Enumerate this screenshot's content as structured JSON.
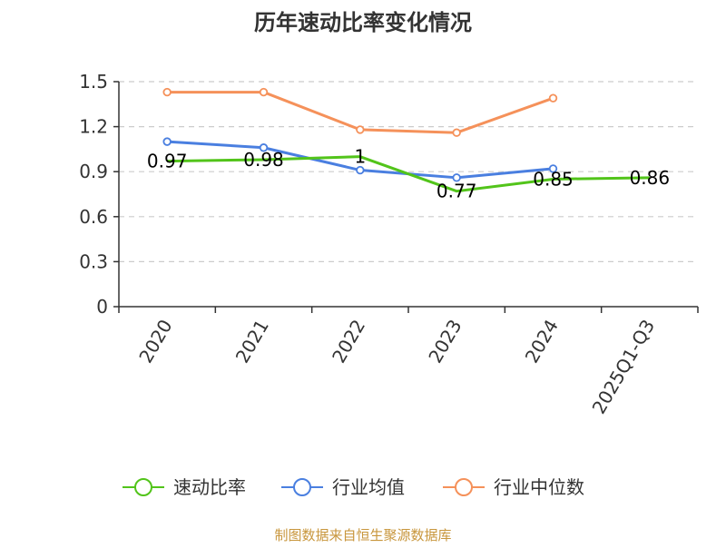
{
  "chart_data": {
    "type": "line",
    "title": "历年速动比率变化情况",
    "categories": [
      "2020",
      "2021",
      "2022",
      "2023",
      "2024",
      "2025Q1-Q3"
    ],
    "ylim": [
      0,
      1.5
    ],
    "yticks": [
      "0",
      "0.3",
      "0.6",
      "0.9",
      "1.2",
      "1.5"
    ],
    "grid": true,
    "legend_position": "bottom",
    "series": [
      {
        "name": "速动比率",
        "color": "#52c41a",
        "values": [
          0.97,
          0.98,
          1.0,
          0.77,
          0.85,
          0.86
        ],
        "labels": [
          "0.97",
          "0.98",
          "1",
          "0.77",
          "0.85",
          "0.86"
        ]
      },
      {
        "name": "行业均值",
        "color": "#4a7fe0",
        "values": [
          1.1,
          1.06,
          0.91,
          0.86,
          0.92,
          null
        ]
      },
      {
        "name": "行业中位数",
        "color": "#f5915a",
        "values": [
          1.43,
          1.43,
          1.18,
          1.16,
          1.39,
          null
        ]
      }
    ]
  },
  "source": {
    "text": "制图数据来自恒生聚源数据库",
    "color": "#c8963c"
  }
}
